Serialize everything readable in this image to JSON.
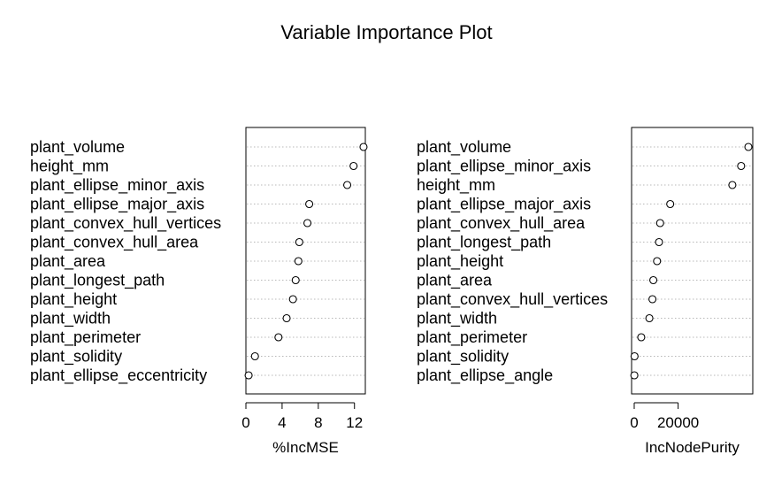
{
  "title": "Variable Importance Plot",
  "chart_data": [
    {
      "type": "scatter",
      "style": "dotchart",
      "xlabel": "%IncMSE",
      "xlim": [
        0,
        13.2
      ],
      "xticks": [
        0,
        4,
        8,
        12
      ],
      "tick_labels": [
        "0",
        "4",
        "8",
        "12"
      ],
      "grid": "dotted horizontal",
      "categories": [
        "plant_volume",
        "height_mm",
        "plant_ellipse_minor_axis",
        "plant_ellipse_major_axis",
        "plant_convex_hull_vertices",
        "plant_convex_hull_area",
        "plant_area",
        "plant_longest_path",
        "plant_height",
        "plant_width",
        "plant_perimeter",
        "plant_solidity",
        "plant_ellipse_eccentricity"
      ],
      "values": [
        13.0,
        11.9,
        11.2,
        7.0,
        6.8,
        5.9,
        5.8,
        5.5,
        5.2,
        4.5,
        3.6,
        1.0,
        0.3
      ]
    },
    {
      "type": "scatter",
      "style": "dotchart",
      "xlabel": "IncNodePurity",
      "xlim": [
        -1200,
        54000
      ],
      "xticks": [
        0,
        20000
      ],
      "tick_labels": [
        "0",
        "20000"
      ],
      "grid": "dotted horizontal",
      "categories": [
        "plant_volume",
        "plant_ellipse_minor_axis",
        "height_mm",
        "plant_ellipse_major_axis",
        "plant_convex_hull_area",
        "plant_longest_path",
        "plant_height",
        "plant_area",
        "plant_convex_hull_vertices",
        "plant_width",
        "plant_perimeter",
        "plant_solidity",
        "plant_ellipse_angle"
      ],
      "values": [
        52000,
        48700,
        44700,
        16400,
        11800,
        11300,
        10400,
        8700,
        8300,
        6900,
        3200,
        150,
        60
      ]
    }
  ]
}
